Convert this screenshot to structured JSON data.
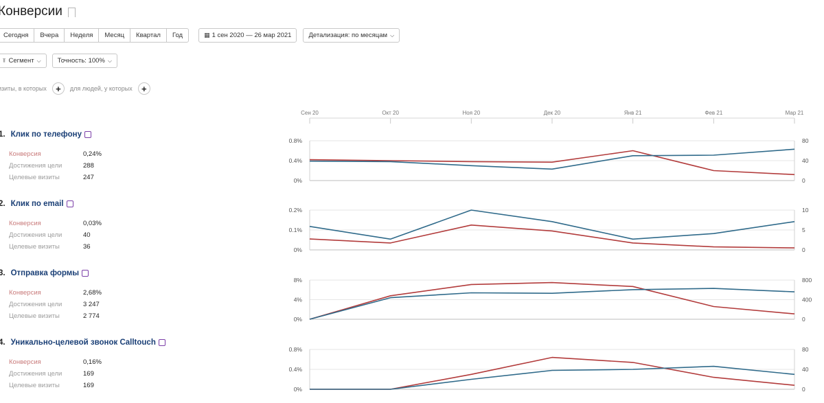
{
  "page": {
    "title": "Конверсии"
  },
  "toolbar": {
    "periods": [
      "Сегодня",
      "Вчера",
      "Неделя",
      "Месяц",
      "Квартал",
      "Год"
    ],
    "date_range": "1 сен 2020 — 26 мар 2021",
    "detail": "Детализация: по месяцам"
  },
  "filters": {
    "segment": "Сегмент",
    "accuracy": "Точность: 100%"
  },
  "conditions": {
    "visits_label": "изиты, в которых",
    "people_label": "для людей, у которых"
  },
  "months": [
    "Сен 20",
    "Окт 20",
    "Ноя 20",
    "Дек 20",
    "Янв 21",
    "Фев 21",
    "Мар 21"
  ],
  "colors": {
    "conversion": "#b23b3b",
    "visits": "#2f6a8a",
    "title": "#1a3f76"
  },
  "goals": [
    {
      "number": "1.",
      "name": "Клик по телефону",
      "metric_labels": [
        "Конверсия",
        "Достижения цели",
        "Целевые визиты"
      ],
      "metric_values": [
        "0,24%",
        "288",
        "247"
      ],
      "left_ticks": [
        "0.8%",
        "0.4%",
        "0%"
      ],
      "right_ticks": [
        "80",
        "40",
        "0"
      ]
    },
    {
      "number": "2.",
      "name": "Клик по email",
      "metric_labels": [
        "Конверсия",
        "Достижения цели",
        "Целевые визиты"
      ],
      "metric_values": [
        "0,03%",
        "40",
        "36"
      ],
      "left_ticks": [
        "0.2%",
        "0.1%",
        "0%"
      ],
      "right_ticks": [
        "10",
        "5",
        "0"
      ]
    },
    {
      "number": "3.",
      "name": "Отправка формы",
      "metric_labels": [
        "Конверсия",
        "Достижения цели",
        "Целевые визиты"
      ],
      "metric_values": [
        "2,68%",
        "3 247",
        "2 774"
      ],
      "left_ticks": [
        "8%",
        "4%",
        "0%"
      ],
      "right_ticks": [
        "800",
        "400",
        "0"
      ]
    },
    {
      "number": "4.",
      "name": "Уникально-целевой звонок Calltouch",
      "metric_labels": [
        "Конверсия",
        "Достижения цели",
        "Целевые визиты"
      ],
      "metric_values": [
        "0,16%",
        "169",
        "169"
      ],
      "left_ticks": [
        "0.8%",
        "0.4%",
        "0%"
      ],
      "right_ticks": [
        "80",
        "40",
        "0"
      ]
    }
  ],
  "chart_data": [
    {
      "type": "line",
      "title": "Клик по телефону",
      "x": [
        "Сен 20",
        "Окт 20",
        "Ноя 20",
        "Дек 20",
        "Янв 21",
        "Фев 21",
        "Мар 21"
      ],
      "ylim": [
        0,
        0.8
      ],
      "y2lim": [
        0,
        80
      ],
      "series": [
        {
          "axis": "left",
          "color": "#b23b3b",
          "values": [
            0.42,
            0.4,
            0.38,
            0.37,
            0.6,
            0.2,
            0.12
          ]
        },
        {
          "axis": "right",
          "color": "#2f6a8a",
          "values": [
            39,
            38,
            30,
            23,
            50,
            51,
            63
          ]
        }
      ]
    },
    {
      "type": "line",
      "title": "Клик по email",
      "x": [
        "Сен 20",
        "Окт 20",
        "Ноя 20",
        "Дек 20",
        "Янв 21",
        "Фев 21",
        "Мар 21"
      ],
      "ylim": [
        0,
        0.2
      ],
      "y2lim": [
        0,
        10
      ],
      "series": [
        {
          "axis": "left",
          "color": "#b23b3b",
          "values": [
            0.055,
            0.035,
            0.125,
            0.095,
            0.035,
            0.015,
            0.01
          ]
        },
        {
          "axis": "right",
          "color": "#2f6a8a",
          "values": [
            5.9,
            2.7,
            10,
            7.1,
            2.7,
            4.1,
            7.1
          ]
        }
      ]
    },
    {
      "type": "line",
      "title": "Отправка формы",
      "x": [
        "Сен 20",
        "Окт 20",
        "Ноя 20",
        "Дек 20",
        "Янв 21",
        "Фев 21",
        "Мар 21"
      ],
      "ylim": [
        0,
        8
      ],
      "y2lim": [
        0,
        800
      ],
      "series": [
        {
          "axis": "left",
          "color": "#b23b3b",
          "values": [
            0,
            4.8,
            7.1,
            7.5,
            6.7,
            2.6,
            1.1
          ]
        },
        {
          "axis": "right",
          "color": "#2f6a8a",
          "values": [
            0,
            440,
            540,
            530,
            605,
            630,
            560
          ]
        }
      ]
    },
    {
      "type": "line",
      "title": "Уникально-целевой звонок Calltouch",
      "x": [
        "Сен 20",
        "Окт 20",
        "Ноя 20",
        "Дек 20",
        "Янв 21",
        "Фев 21",
        "Мар 21"
      ],
      "ylim": [
        0,
        0.8
      ],
      "y2lim": [
        0,
        80
      ],
      "series": [
        {
          "axis": "left",
          "color": "#b23b3b",
          "values": [
            0,
            0,
            0.3,
            0.64,
            0.54,
            0.24,
            0.08
          ]
        },
        {
          "axis": "right",
          "color": "#2f6a8a",
          "values": [
            0,
            0,
            20,
            38,
            40,
            46,
            30
          ]
        }
      ]
    }
  ]
}
